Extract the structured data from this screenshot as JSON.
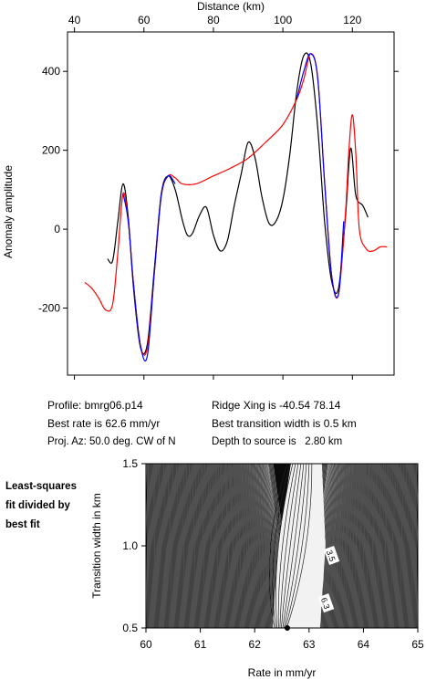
{
  "chart_data": [
    {
      "type": "line",
      "xlabel": "Distance (km)",
      "ylabel": "Anomaly amplitude",
      "xlim": [
        38,
        132
      ],
      "ylim": [
        -370,
        500
      ],
      "xticks": [
        40,
        60,
        80,
        100,
        120
      ],
      "yticks": [
        400,
        200,
        0,
        -200
      ],
      "series": [
        {
          "color": "#000000",
          "x": [
            49.5,
            51,
            52.5,
            54,
            55.5,
            57,
            59,
            61,
            63,
            65,
            67,
            69,
            71,
            72.5,
            74,
            76,
            78,
            80,
            82,
            84,
            86,
            88,
            90,
            92,
            94,
            96,
            98,
            100,
            102,
            104,
            106,
            108,
            110,
            112,
            114,
            116,
            118,
            119.5,
            121,
            123,
            124.5
          ],
          "y": [
            -75,
            -80,
            20,
            115,
            30,
            -150,
            -300,
            -290,
            -100,
            90,
            135,
            100,
            25,
            -15,
            -10,
            35,
            55,
            -15,
            -55,
            -30,
            60,
            140,
            220,
            180,
            80,
            15,
            20,
            75,
            190,
            350,
            440,
            420,
            260,
            20,
            -130,
            -150,
            30,
            205,
            85,
            60,
            30
          ]
        },
        {
          "color": "#ff0000",
          "x": [
            43,
            45,
            47,
            49,
            51,
            52.5,
            54,
            55.5,
            57,
            59,
            61,
            63,
            65,
            67,
            69,
            71,
            75,
            80,
            85,
            90,
            95,
            100,
            104,
            106,
            108,
            110,
            112,
            114,
            116,
            118,
            119,
            120,
            121,
            122,
            124,
            126,
            128,
            130
          ],
          "y": [
            -135,
            -150,
            -175,
            -205,
            -190,
            -60,
            90,
            20,
            -140,
            -295,
            -300,
            -110,
            85,
            135,
            130,
            115,
            115,
            135,
            155,
            180,
            220,
            265,
            330,
            380,
            445,
            385,
            120,
            -115,
            -165,
            40,
            200,
            290,
            190,
            0,
            -50,
            -55,
            -45,
            -45
          ]
        },
        {
          "color": "#0000ff",
          "x": [
            54,
            55.5,
            57,
            59,
            61,
            63,
            65,
            67,
            69,
            104,
            106,
            108,
            110,
            112,
            114,
            116,
            117.5
          ],
          "y": [
            90,
            20,
            -140,
            -295,
            -320,
            -110,
            85,
            135,
            115,
            330,
            400,
            445,
            385,
            120,
            -115,
            -165,
            20
          ]
        }
      ]
    },
    {
      "type": "contour",
      "xlabel": "Rate in mm/yr",
      "ylabel": "Transition width in km",
      "xlim": [
        60,
        65
      ],
      "ylim": [
        0.5,
        1.5
      ],
      "xticks": [
        60,
        61,
        62,
        63,
        64,
        65
      ],
      "yticks": [
        0.5,
        1.0,
        1.5
      ],
      "contour_labels": [
        {
          "text": "3.5",
          "x": 63.4,
          "y": 0.94
        },
        {
          "text": "6.3",
          "x": 63.3,
          "y": 0.65
        }
      ],
      "best_fit_marker": {
        "x": 62.6,
        "y": 0.5
      }
    }
  ],
  "info": {
    "profile": "Profile: bmrg06.p14",
    "ridge": "Ridge Xing is -40.54 78.14",
    "best_rate": "Best rate is 62.6 mm/yr",
    "best_width": "Best transition width is 0.5 km",
    "proj_az": "Proj. Az: 50.0 deg. CW of N",
    "depth": "Depth to source is   2.80 km"
  },
  "side_label": [
    "Least-squares",
    "fit divided by",
    "best fit"
  ]
}
